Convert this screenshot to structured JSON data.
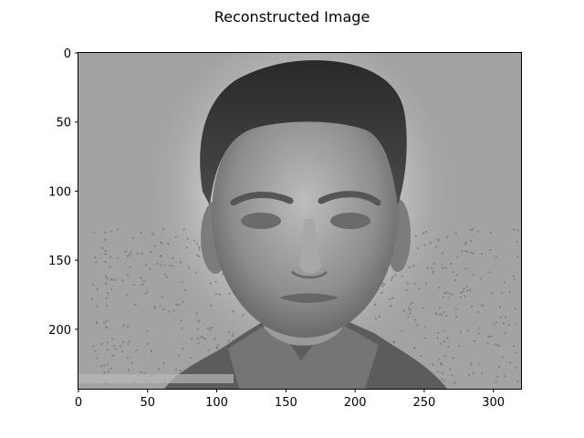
{
  "figure": {
    "title": "Reconstructed Image"
  },
  "image": {
    "description_kind": "grayscale face reconstruction",
    "colormap": "gray",
    "background_color": "#a4a4a4",
    "extent_x": [
      0,
      320
    ],
    "extent_y": [
      0,
      243
    ]
  },
  "axes": {
    "x_ticks": [
      0,
      50,
      100,
      150,
      200,
      250,
      300
    ],
    "x_tick_labels": [
      "0",
      "50",
      "100",
      "150",
      "200",
      "250",
      "300"
    ],
    "y_ticks": [
      0,
      50,
      100,
      150,
      200
    ],
    "y_tick_labels": [
      "0",
      "50",
      "100",
      "150",
      "200"
    ],
    "xlim": [
      0,
      320
    ],
    "ylim": [
      243,
      0
    ]
  }
}
